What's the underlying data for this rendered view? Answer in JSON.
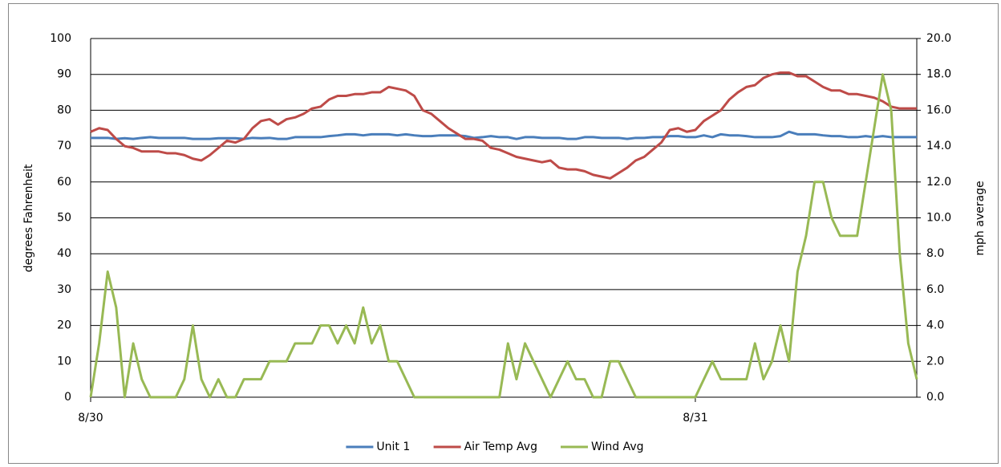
{
  "chart_data": {
    "type": "line",
    "categories": [
      "8/30",
      null,
      null,
      null,
      null,
      null,
      null,
      null,
      null,
      null,
      null,
      null,
      null,
      null,
      null,
      null,
      null,
      null,
      null,
      null,
      null,
      null,
      null,
      null,
      null,
      null,
      null,
      null,
      null,
      null,
      null,
      null,
      null,
      null,
      null,
      null,
      null,
      null,
      null,
      null,
      null,
      null,
      null,
      null,
      null,
      null,
      null,
      null,
      null,
      null,
      null,
      null,
      null,
      null,
      null,
      null,
      null,
      null,
      null,
      null,
      null,
      null,
      null,
      null,
      null,
      null,
      null,
      null,
      null,
      null,
      null,
      "8/31",
      null,
      null,
      null,
      null,
      null,
      null,
      null,
      null,
      null,
      null,
      null,
      null,
      null,
      null,
      null,
      null,
      null,
      null,
      null,
      null,
      null,
      null,
      null,
      null,
      null,
      null
    ],
    "y_label": "degrees Fahrenheit",
    "y2_label": "mph average",
    "ylim": [
      0,
      100
    ],
    "yticks": [
      0,
      10,
      20,
      30,
      40,
      50,
      60,
      70,
      80,
      90,
      100
    ],
    "y2lim": [
      0,
      20
    ],
    "y2ticks": [
      {
        "value": 0,
        "label": "0.0"
      },
      {
        "value": 2,
        "label": "2.0"
      },
      {
        "value": 4,
        "label": "4.0"
      },
      {
        "value": 6,
        "label": "6.0"
      },
      {
        "value": 8,
        "label": "8.0"
      },
      {
        "value": 10,
        "label": "10.0"
      },
      {
        "value": 12,
        "label": "12.0"
      },
      {
        "value": 14,
        "label": "14.0"
      },
      {
        "value": 16,
        "label": "16.0"
      },
      {
        "value": 18,
        "label": "18.0"
      },
      {
        "value": 20,
        "label": "20.0"
      }
    ],
    "grid": true,
    "legend": "bottom",
    "series": [
      {
        "name": "Unit 1",
        "color": "#4a7ebb",
        "values": [
          72.3,
          72.3,
          72.3,
          72,
          72.2,
          72,
          72.3,
          72.5,
          72.3,
          72.3,
          72.3,
          72.3,
          72,
          72,
          72,
          72.2,
          72.2,
          72.2,
          72,
          72.3,
          72.2,
          72.3,
          72,
          72,
          72.5,
          72.5,
          72.5,
          72.5,
          72.8,
          73,
          73.3,
          73.3,
          73,
          73.3,
          73.3,
          73.3,
          73,
          73.3,
          73,
          72.8,
          72.8,
          73,
          73,
          73,
          72.8,
          72.3,
          72.5,
          72.8,
          72.5,
          72.5,
          72,
          72.5,
          72.5,
          72.3,
          72.3,
          72.3,
          72,
          72,
          72.5,
          72.5,
          72.3,
          72.3,
          72.3,
          72,
          72.3,
          72.3,
          72.5,
          72.5,
          72.8,
          72.8,
          72.5,
          72.5,
          73,
          72.5,
          73.3,
          73,
          73,
          72.8,
          72.5,
          72.5,
          72.5,
          72.8,
          74,
          73.3,
          73.3,
          73.3,
          73,
          72.8,
          72.8,
          72.5,
          72.5,
          72.8,
          72.5,
          72.8,
          72.5,
          72.5,
          72.5,
          72.5
        ]
      },
      {
        "name": "Air Temp Avg",
        "color": "#be4b48",
        "values": [
          74,
          75,
          74.5,
          72,
          70,
          69.5,
          68.5,
          68.5,
          68.5,
          68,
          68,
          67.5,
          66.5,
          66,
          67.5,
          69.5,
          71.5,
          71,
          72,
          75,
          77,
          77.5,
          76,
          77.5,
          78,
          79,
          80.5,
          81,
          83,
          84,
          84,
          84.5,
          84.5,
          85,
          85,
          86.5,
          86,
          85.5,
          84,
          80,
          79,
          77,
          75,
          73.5,
          72,
          72,
          71.5,
          69.5,
          69,
          68,
          67,
          66.5,
          66,
          65.5,
          66,
          64,
          63.5,
          63.5,
          63,
          62,
          61.5,
          61,
          62.5,
          64,
          66,
          67,
          69,
          71,
          74.5,
          75,
          74,
          74.5,
          77,
          78.5,
          80,
          83,
          85,
          86.5,
          87,
          89,
          90,
          90.5,
          90.5,
          89.5,
          89.5,
          88,
          86.5,
          85.5,
          85.5,
          84.5,
          84.5,
          84,
          83.5,
          82.5,
          81,
          80.5,
          80.5,
          80.5
        ]
      },
      {
        "name": "Wind Avg",
        "color": "#98b954",
        "axis": "y2",
        "values": [
          0,
          3,
          7,
          5,
          0,
          3,
          1,
          0,
          0,
          0,
          0,
          1,
          4,
          1,
          0,
          1,
          0,
          0,
          1,
          1,
          1,
          2,
          2,
          2,
          3,
          3,
          3,
          4,
          4,
          3,
          4,
          3,
          5,
          3,
          4,
          2,
          2,
          1,
          0,
          0,
          0,
          0,
          0,
          0,
          0,
          0,
          0,
          0,
          0,
          3,
          1,
          3,
          2,
          1,
          0,
          1,
          2,
          1,
          1,
          0,
          0,
          2,
          2,
          1,
          0,
          0,
          0,
          0,
          0,
          0,
          0,
          0,
          1,
          2,
          1,
          1,
          1,
          1,
          3,
          1,
          2,
          4,
          2,
          7,
          9,
          12,
          12,
          10,
          9,
          9,
          9,
          12,
          15,
          18,
          16,
          8,
          3,
          1
        ]
      }
    ]
  }
}
